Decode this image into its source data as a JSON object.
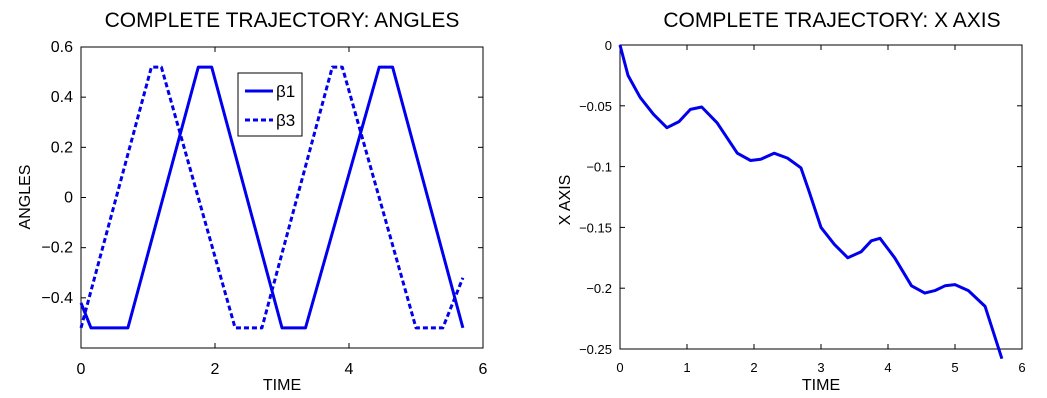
{
  "chart_data": [
    {
      "type": "line",
      "title": "COMPLETE TRAJECTORY: ANGLES",
      "xlabel": "TIME",
      "ylabel": "ANGLES",
      "xlim": [
        0,
        6
      ],
      "ylim": [
        -0.6,
        0.6
      ],
      "xticks": [
        "0",
        "2",
        "4",
        "6"
      ],
      "yticks": [
        "−0.4",
        "−0.2",
        "0",
        "0.2",
        "0.4",
        "0.6"
      ],
      "grid": false,
      "legend": "top-center",
      "color": "#0000ee",
      "series": [
        {
          "name": "β1",
          "style": "solid",
          "x": [
            0,
            0.15,
            0.7,
            1.75,
            1.95,
            3.0,
            3.35,
            4.45,
            4.65,
            5.7
          ],
          "y": [
            -0.42,
            -0.52,
            -0.52,
            0.52,
            0.52,
            -0.52,
            -0.52,
            0.52,
            0.52,
            -0.52
          ]
        },
        {
          "name": "β3",
          "style": "dashed",
          "x": [
            0,
            1.05,
            1.2,
            2.3,
            2.7,
            3.75,
            3.9,
            5.0,
            5.4,
            5.7
          ],
          "y": [
            -0.52,
            0.52,
            0.52,
            -0.52,
            -0.52,
            0.52,
            0.52,
            -0.52,
            -0.52,
            -0.32
          ]
        }
      ]
    },
    {
      "type": "line",
      "title": "COMPLETE TRAJECTORY: X AXIS",
      "xlabel": "TIME",
      "ylabel": "X AXIS",
      "xlim": [
        0,
        6
      ],
      "ylim": [
        -0.25,
        0
      ],
      "xticks": [
        "0",
        "1",
        "2",
        "3",
        "4",
        "5",
        "6"
      ],
      "yticks": [
        "−0.25",
        "−0.2",
        "−0.15",
        "−0.1",
        "−0.05",
        "0"
      ],
      "grid": false,
      "color": "#0000ee",
      "series": [
        {
          "x": [
            0,
            0.12,
            0.3,
            0.5,
            0.7,
            0.88,
            1.05,
            1.22,
            1.45,
            1.75,
            1.95,
            2.1,
            2.3,
            2.5,
            2.7,
            2.82,
            3.0,
            3.2,
            3.4,
            3.6,
            3.75,
            3.88,
            4.1,
            4.35,
            4.55,
            4.7,
            4.85,
            5.0,
            5.2,
            5.45,
            5.7
          ],
          "y": [
            0,
            -0.025,
            -0.043,
            -0.057,
            -0.068,
            -0.063,
            -0.053,
            -0.051,
            -0.064,
            -0.089,
            -0.095,
            -0.094,
            -0.089,
            -0.093,
            -0.101,
            -0.12,
            -0.15,
            -0.164,
            -0.175,
            -0.17,
            -0.161,
            -0.159,
            -0.175,
            -0.198,
            -0.204,
            -0.202,
            -0.198,
            -0.197,
            -0.202,
            -0.215,
            -0.258
          ]
        }
      ]
    }
  ]
}
